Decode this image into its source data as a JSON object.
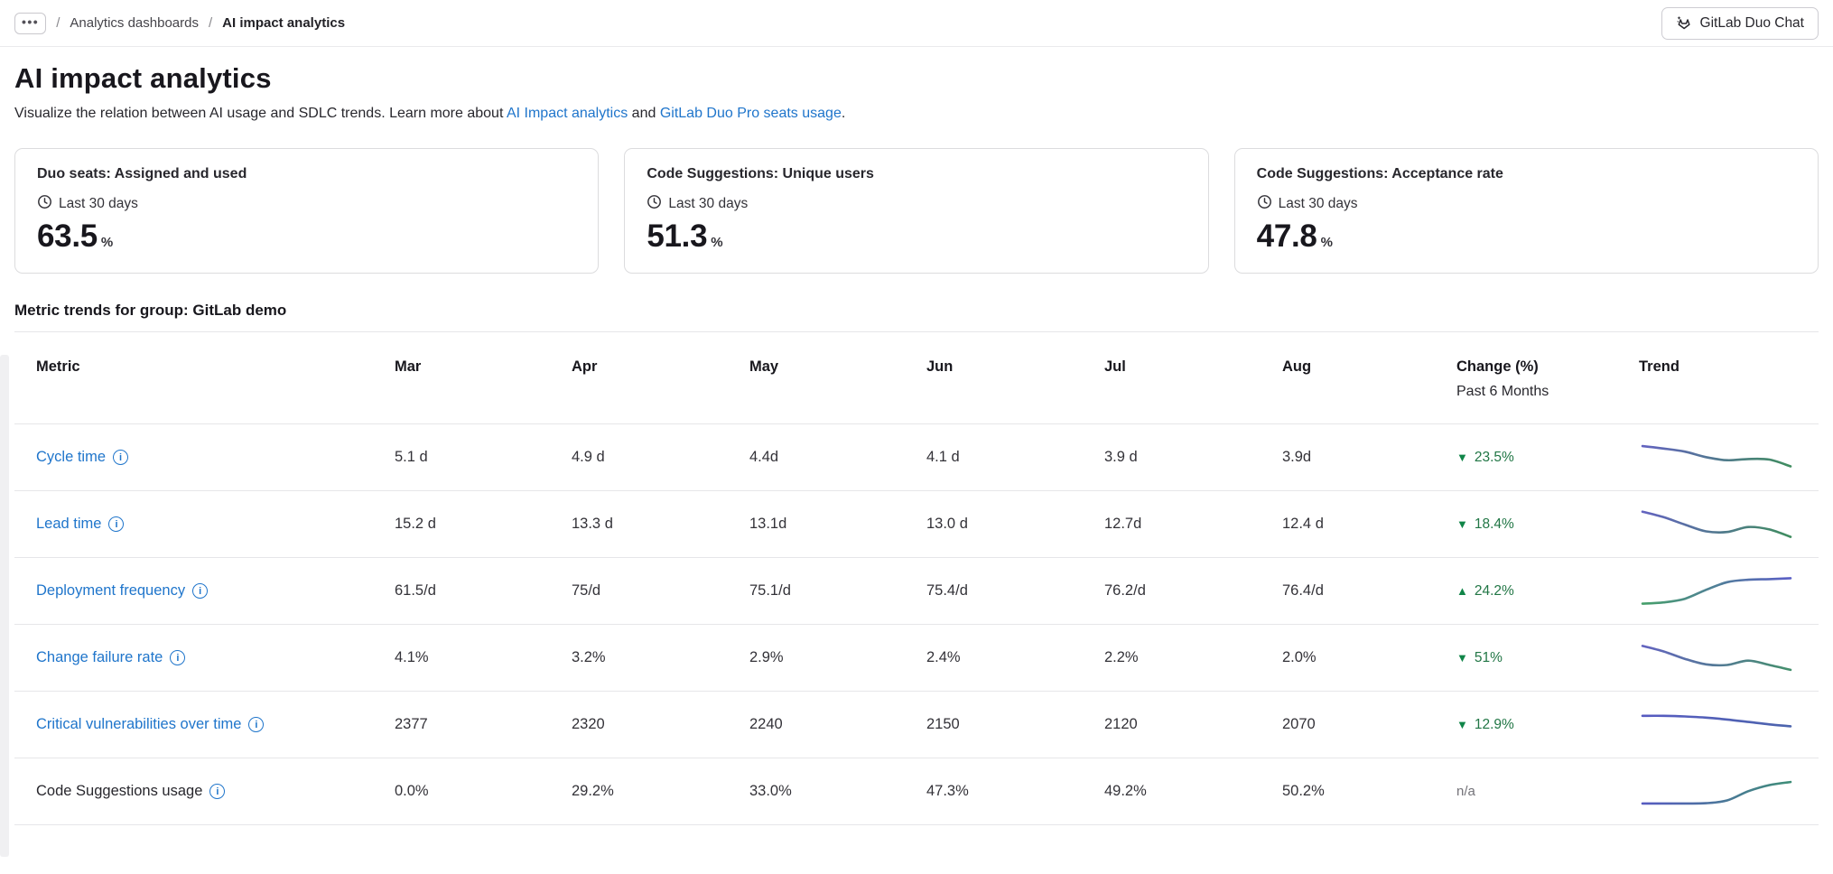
{
  "breadcrumb": {
    "ellipsis": "•••",
    "separator": "/",
    "parent": "Analytics dashboards",
    "current": "AI impact analytics"
  },
  "duo_chat_button": {
    "label": "GitLab Duo Chat"
  },
  "page": {
    "title": "AI impact analytics",
    "description_prefix": "Visualize the relation between AI usage and SDLC trends. Learn more about ",
    "link1": "AI Impact analytics",
    "description_mid": " and ",
    "link2": "GitLab Duo Pro seats usage",
    "description_suffix": "."
  },
  "cards": [
    {
      "title": "Duo seats: Assigned and used",
      "period": "Last 30 days",
      "value": "63.5",
      "unit": "%"
    },
    {
      "title": "Code Suggestions: Unique users",
      "period": "Last 30 days",
      "value": "51.3",
      "unit": "%"
    },
    {
      "title": "Code Suggestions: Acceptance rate",
      "period": "Last 30 days",
      "value": "47.8",
      "unit": "%"
    }
  ],
  "section_title": "Metric trends for group: GitLab demo",
  "table": {
    "headers": {
      "metric": "Metric",
      "months": [
        "Mar",
        "Apr",
        "May",
        "Jun",
        "Jul",
        "Aug"
      ],
      "change_line1": "Change (%)",
      "change_line2": "Past 6 Months",
      "trend": "Trend"
    },
    "rows": [
      {
        "metric": "Cycle time",
        "is_link": true,
        "values": [
          "5.1 d",
          "4.9 d",
          "4.4d",
          "4.1 d",
          "3.9 d",
          "3.9d"
        ],
        "change": "23.5%",
        "direction": "down",
        "spark": [
          0.88,
          0.8,
          0.7,
          0.52,
          0.42,
          0.46,
          0.44,
          0.22
        ],
        "spark_colors": [
          "#6363c0",
          "#3f8d5f"
        ]
      },
      {
        "metric": "Lead time",
        "is_link": true,
        "values": [
          "15.2 d",
          "13.3 d",
          "13.1d",
          "13.0 d",
          "12.7d",
          "12.4 d"
        ],
        "change": "18.4%",
        "direction": "down",
        "spark": [
          0.92,
          0.74,
          0.5,
          0.28,
          0.26,
          0.42,
          0.34,
          0.1
        ],
        "spark_colors": [
          "#6363c0",
          "#3f8d5f"
        ]
      },
      {
        "metric": "Deployment frequency",
        "is_link": true,
        "values": [
          "61.5/d",
          "75/d",
          "75.1/d",
          "75.4/d",
          "76.2/d",
          "76.4/d"
        ],
        "change": "24.2%",
        "direction": "up",
        "spark": [
          0.1,
          0.14,
          0.26,
          0.55,
          0.8,
          0.88,
          0.9,
          0.93
        ],
        "spark_colors": [
          "#46a06a",
          "#5a5ec6"
        ]
      },
      {
        "metric": "Change failure rate",
        "is_link": true,
        "values": [
          "4.1%",
          "3.2%",
          "2.9%",
          "2.4%",
          "2.2%",
          "2.0%"
        ],
        "change": "51%",
        "direction": "down",
        "spark": [
          0.9,
          0.72,
          0.48,
          0.3,
          0.28,
          0.42,
          0.28,
          0.12
        ],
        "spark_colors": [
          "#6363c0",
          "#44906c"
        ]
      },
      {
        "metric": "Critical vulnerabilities over time",
        "is_link": true,
        "values": [
          "2377",
          "2320",
          "2240",
          "2150",
          "2120",
          "2070"
        ],
        "change": "12.9%",
        "direction": "down",
        "spark": [
          0.8,
          0.8,
          0.78,
          0.74,
          0.68,
          0.6,
          0.52,
          0.46
        ],
        "spark_colors": [
          "#575bc1",
          "#4c64ad"
        ]
      },
      {
        "metric": "Code Suggestions usage",
        "is_link": false,
        "values": [
          "0.0%",
          "29.2%",
          "33.0%",
          "47.3%",
          "49.2%",
          "50.2%"
        ],
        "change": "n/a",
        "direction": "none",
        "spark": [
          0.12,
          0.12,
          0.12,
          0.13,
          0.22,
          0.52,
          0.72,
          0.82
        ],
        "spark_colors": [
          "#575bc1",
          "#3f8e78"
        ]
      }
    ]
  },
  "colors": {
    "link_blue": "#1f75cb",
    "green_icon": "#108548",
    "green_text": "#217645",
    "muted": "#737278",
    "border": "#dcdcde",
    "row_divider": "#e6e6e9"
  }
}
